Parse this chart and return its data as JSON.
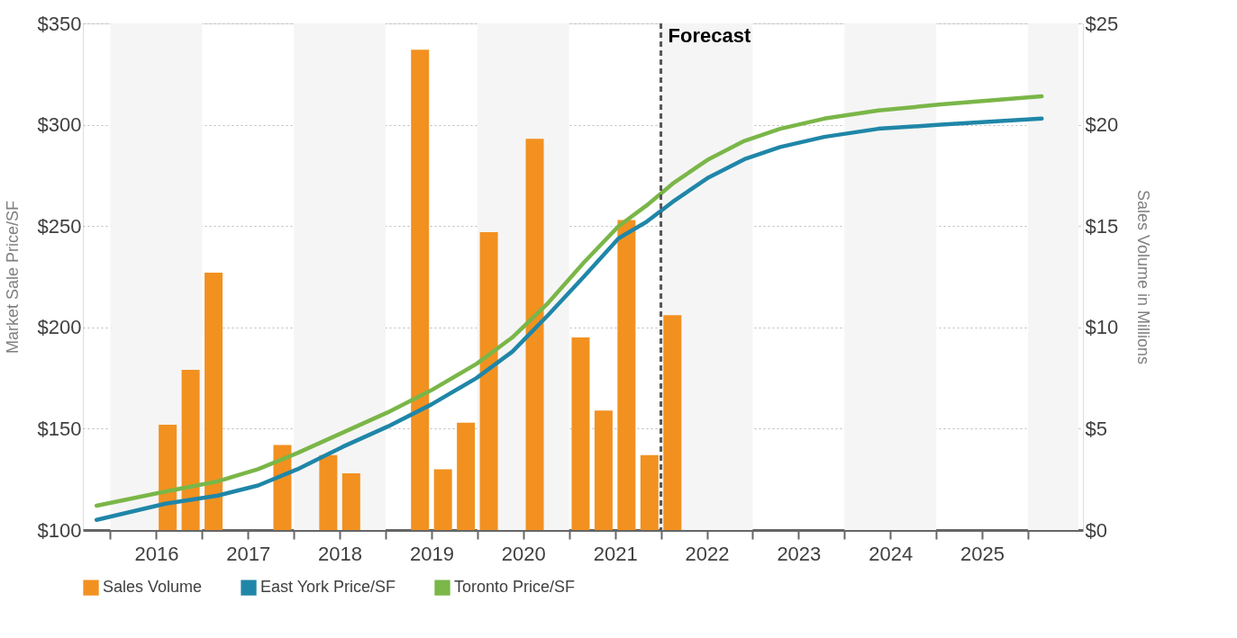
{
  "chart_data": {
    "type": "bar",
    "ylabel": "Market Sale Price/SF",
    "y2label": "Sales Volume in Millions",
    "xlim": [
      2015.75,
      2026.55
    ],
    "xticks": [
      {
        "value": 2016,
        "label": null
      },
      {
        "value": 2017,
        "label": null
      },
      {
        "value": 2018,
        "label": null
      },
      {
        "value": 2019,
        "label": null
      },
      {
        "value": 2020,
        "label": null
      },
      {
        "value": 2021,
        "label": null
      },
      {
        "value": 2022,
        "label": null
      },
      {
        "value": 2023,
        "label": null
      },
      {
        "value": 2024,
        "label": null
      },
      {
        "value": 2025,
        "label": null
      },
      {
        "value": 2026,
        "label": null
      },
      {
        "value": 2016.5,
        "label": "2016"
      },
      {
        "value": 2017.5,
        "label": "2017"
      },
      {
        "value": 2018.5,
        "label": "2018"
      },
      {
        "value": 2019.5,
        "label": "2019"
      },
      {
        "value": 2020.5,
        "label": "2020"
      },
      {
        "value": 2021.5,
        "label": "2021"
      },
      {
        "value": 2022.5,
        "label": "2022"
      },
      {
        "value": 2023.5,
        "label": "2023"
      },
      {
        "value": 2024.5,
        "label": "2024"
      },
      {
        "value": 2025.5,
        "label": "2025"
      }
    ],
    "ylim": [
      100,
      350
    ],
    "yticks": [
      {
        "value": 100,
        "label": "$100"
      },
      {
        "value": 150,
        "label": "$150"
      },
      {
        "value": 200,
        "label": "$200"
      },
      {
        "value": 250,
        "label": "$250"
      },
      {
        "value": 300,
        "label": "$300"
      },
      {
        "value": 350,
        "label": "$350"
      }
    ],
    "y2lim": [
      0,
      25
    ],
    "y2ticks": [
      {
        "value": 0,
        "label": "$0"
      },
      {
        "value": 5,
        "label": "$5"
      },
      {
        "value": 10,
        "label": "$10"
      },
      {
        "value": 15,
        "label": "$15"
      },
      {
        "value": 20,
        "label": "$20"
      },
      {
        "value": 25,
        "label": "$25"
      }
    ],
    "grid": "y",
    "legend": "bottom",
    "line_style": "solid",
    "marker": "none",
    "series": [
      {
        "name": "Sales Volume",
        "axis": "y2",
        "color": "#f29120",
        "x": [
          2016.625,
          2016.875,
          2017.125,
          2017.875,
          2018.375,
          2018.625,
          2019.375,
          2019.625,
          2019.875,
          2020.125,
          2020.625,
          2021.125,
          2021.375,
          2021.625,
          2021.875,
          2022.125
        ],
        "values": [
          5.2,
          7.9,
          12.7,
          4.2,
          3.7,
          2.8,
          23.7,
          3.0,
          5.3,
          14.7,
          19.3,
          9.5,
          5.9,
          15.3,
          3.7,
          10.6
        ]
      },
      {
        "name": "East York Price/SF",
        "type": "line",
        "axis": "y",
        "color": "#1f86a8",
        "x": [
          2015.85,
          2016.6,
          2017.17,
          2017.61,
          2018.04,
          2018.53,
          2019.02,
          2019.5,
          2019.99,
          2020.38,
          2020.77,
          2021.16,
          2021.54,
          2021.84,
          2022.13,
          2022.52,
          2022.91,
          2023.3,
          2023.78,
          2024.37,
          2025.05,
          2026.15
        ],
        "values": [
          105,
          113,
          117,
          122,
          130,
          141,
          151,
          162,
          175,
          188,
          206,
          225,
          244,
          252,
          262,
          274,
          283,
          289,
          294,
          298,
          300,
          303
        ]
      },
      {
        "name": "Toronto Price/SF",
        "type": "line",
        "axis": "y",
        "color": "#7ab648",
        "x": [
          2015.85,
          2016.6,
          2017.17,
          2017.61,
          2018.04,
          2018.53,
          2019.02,
          2019.5,
          2019.99,
          2020.38,
          2020.77,
          2021.16,
          2021.54,
          2021.84,
          2022.13,
          2022.52,
          2022.91,
          2023.3,
          2023.78,
          2024.37,
          2025.05,
          2026.15
        ],
        "values": [
          112,
          119,
          124,
          130,
          138,
          148,
          158,
          169,
          182,
          195,
          212,
          232,
          250,
          260,
          271,
          283,
          292,
          298,
          303,
          307,
          310,
          314
        ]
      }
    ],
    "ref_lines": [
      {
        "axis": "x",
        "value": 2022,
        "label": "Forecast",
        "color": "#555555",
        "line_style": "dashed"
      }
    ],
    "bands": [
      {
        "axis": "x",
        "from": 2016,
        "to": 2017,
        "color": "#f5f5f5"
      },
      {
        "axis": "x",
        "from": 2018,
        "to": 2019,
        "color": "#f5f5f5"
      },
      {
        "axis": "x",
        "from": 2020,
        "to": 2021,
        "color": "#f5f5f5"
      },
      {
        "axis": "x",
        "from": 2022,
        "to": 2023,
        "color": "#f5f5f5"
      },
      {
        "axis": "x",
        "from": 2024,
        "to": 2025,
        "color": "#f5f5f5"
      },
      {
        "axis": "x",
        "from": 2026,
        "to": 2026.55,
        "color": "#f5f5f5"
      }
    ]
  }
}
